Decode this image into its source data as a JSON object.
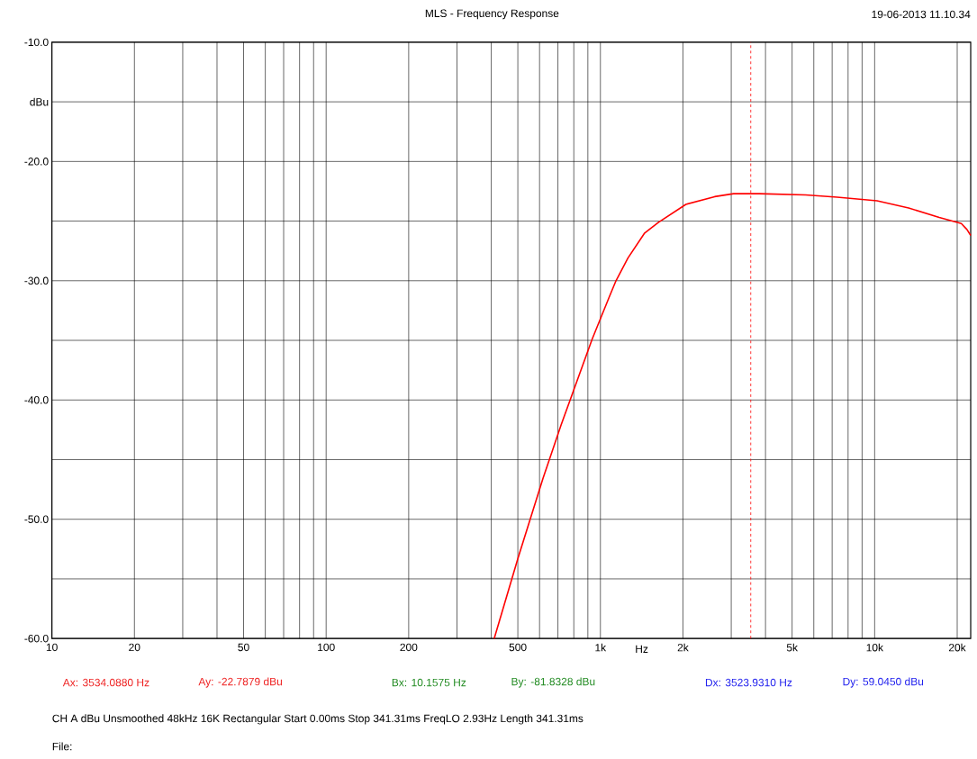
{
  "chart_data": {
    "type": "line",
    "title": "MLS - Frequency Response",
    "xlabel": "Hz",
    "ylabel": "dBu",
    "log": "x",
    "grid": true,
    "marker": "none",
    "line_style": "solid",
    "xlim": [
      10,
      22400
    ],
    "ylim": [
      -60,
      -10
    ],
    "xticks": [
      {
        "value": 10,
        "label": "10"
      },
      {
        "value": 20,
        "label": "20"
      },
      {
        "value": 30,
        "label": null
      },
      {
        "value": 40,
        "label": null
      },
      {
        "value": 50,
        "label": "50"
      },
      {
        "value": 60,
        "label": null
      },
      {
        "value": 70,
        "label": null
      },
      {
        "value": 80,
        "label": null
      },
      {
        "value": 90,
        "label": null
      },
      {
        "value": 100,
        "label": "100"
      },
      {
        "value": 200,
        "label": "200"
      },
      {
        "value": 300,
        "label": null
      },
      {
        "value": 400,
        "label": null
      },
      {
        "value": 500,
        "label": "500"
      },
      {
        "value": 600,
        "label": null
      },
      {
        "value": 700,
        "label": null
      },
      {
        "value": 800,
        "label": null
      },
      {
        "value": 900,
        "label": null
      },
      {
        "value": 1000,
        "label": "1k"
      },
      {
        "value": 2000,
        "label": "2k"
      },
      {
        "value": 3000,
        "label": null
      },
      {
        "value": 4000,
        "label": null
      },
      {
        "value": 5000,
        "label": "5k"
      },
      {
        "value": 6000,
        "label": null
      },
      {
        "value": 7000,
        "label": null
      },
      {
        "value": 8000,
        "label": null
      },
      {
        "value": 9000,
        "label": null
      },
      {
        "value": 10000,
        "label": "10k"
      },
      {
        "value": 20000,
        "label": "20k"
      }
    ],
    "yticks": [
      {
        "value": -60,
        "label": "-60.0"
      },
      {
        "value": -55,
        "label": null
      },
      {
        "value": -50,
        "label": "-50.0"
      },
      {
        "value": -45,
        "label": null
      },
      {
        "value": -40,
        "label": "-40.0"
      },
      {
        "value": -35,
        "label": null
      },
      {
        "value": -30,
        "label": "-30.0"
      },
      {
        "value": -25,
        "label": null
      },
      {
        "value": -20,
        "label": "-20.0"
      },
      {
        "value": -15,
        "label": null
      },
      {
        "value": -10,
        "label": "-10.0"
      }
    ],
    "x": [
      410,
      500,
      617,
      719,
      933,
      1080,
      1140,
      1260,
      1450,
      1630,
      2050,
      2610,
      3060,
      3800,
      5600,
      7300,
      10200,
      13300,
      17200,
      20700,
      21700,
      22400
    ],
    "series": [
      {
        "color": "#ff0000",
        "values": [
          -60,
          -53.3,
          -46.6,
          -42.1,
          -34.9,
          -31.3,
          -30.0,
          -28.1,
          -26.0,
          -25.1,
          -23.6,
          -22.95,
          -22.7,
          -22.7,
          -22.8,
          -23.0,
          -23.3,
          -23.9,
          -24.7,
          -25.2,
          -25.7,
          -26.2
        ]
      }
    ],
    "ref_lines": [
      {
        "axis": "x",
        "value": 3534.088,
        "color": "#ff0000",
        "line_style": "dashed"
      }
    ],
    "annotations": [
      "19-06-2013 11.10.34",
      "Ax: 3534.0880 Hz",
      "Ay: -22.7879 dBu",
      "Bx: 10.1575 Hz",
      "By: -81.8328 dBu",
      "Dx: 3523.9310 Hz",
      "Dy: 59.0450 dBu",
      "CH A   dBu   Unsmoothed   48kHz   16K   Rectangular   Start 0.00ms   Stop 341.31ms   FreqLO 2.93Hz   Length 341.31ms",
      "File:"
    ]
  }
}
